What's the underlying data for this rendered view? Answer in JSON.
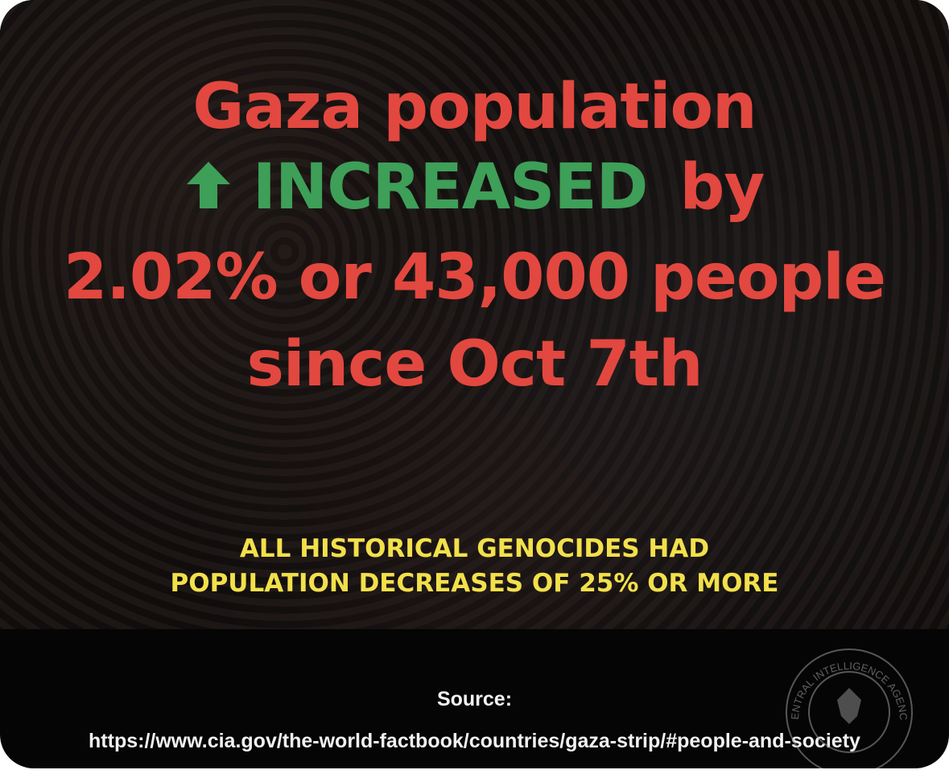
{
  "headline": {
    "line1": "Gaza population",
    "line2_highlight": "INCREASED",
    "line2_rest": "by",
    "line3": "2.02% or 43,000 people",
    "line4": "since Oct 7th"
  },
  "note": {
    "line1": "ALL HISTORICAL GENOCIDES HAD",
    "line2": "POPULATION DECREASES OF 25% OR MORE"
  },
  "source": {
    "label": "Source:",
    "url": "https://www.cia.gov/the-world-factbook/countries/gaza-strip/#people-and-society"
  },
  "seal": {
    "text": "CENTRAL INTELLIGENCE AGENCY"
  }
}
